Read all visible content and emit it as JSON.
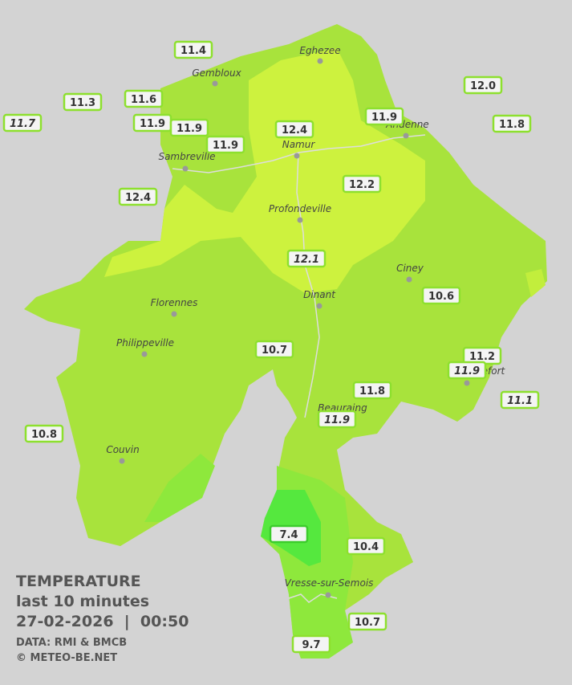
{
  "title": "TEMPERATURE",
  "subtitle": "last 10 minutes",
  "datetime": "27-02-2026  |  00:50",
  "source": "DATA: RMI & BMCB",
  "credit": "© METEO-BE.NET",
  "towns": [
    "Eghezee",
    "Gembloux",
    "Andenne",
    "Namur",
    "Sambreville",
    "Profondeville",
    "Ciney",
    "Dinant",
    "Florennes",
    "Philippeville",
    "Rochefort",
    "Beauraing",
    "Couvin",
    "Vresse-sur-Semois"
  ],
  "stations": [
    {
      "temp": "11.4"
    },
    {
      "temp": "11.3"
    },
    {
      "temp": "11.7",
      "italic": true
    },
    {
      "temp": "11.6"
    },
    {
      "temp": "11.9"
    },
    {
      "temp": "11.9"
    },
    {
      "temp": "11.9"
    },
    {
      "temp": "12.4"
    },
    {
      "temp": "11.9"
    },
    {
      "temp": "12.0"
    },
    {
      "temp": "11.8"
    },
    {
      "temp": "12.4"
    },
    {
      "temp": "12.2"
    },
    {
      "temp": "12.1",
      "italic": true
    },
    {
      "temp": "10.6"
    },
    {
      "temp": "10.7"
    },
    {
      "temp": "11.2"
    },
    {
      "temp": "11.9",
      "italic": true
    },
    {
      "temp": "11.1",
      "italic": true
    },
    {
      "temp": "11.8"
    },
    {
      "temp": "11.9",
      "italic": true
    },
    {
      "temp": "10.8"
    },
    {
      "temp": "7.4"
    },
    {
      "temp": "10.4"
    },
    {
      "temp": "10.7"
    },
    {
      "temp": "9.7"
    }
  ]
}
